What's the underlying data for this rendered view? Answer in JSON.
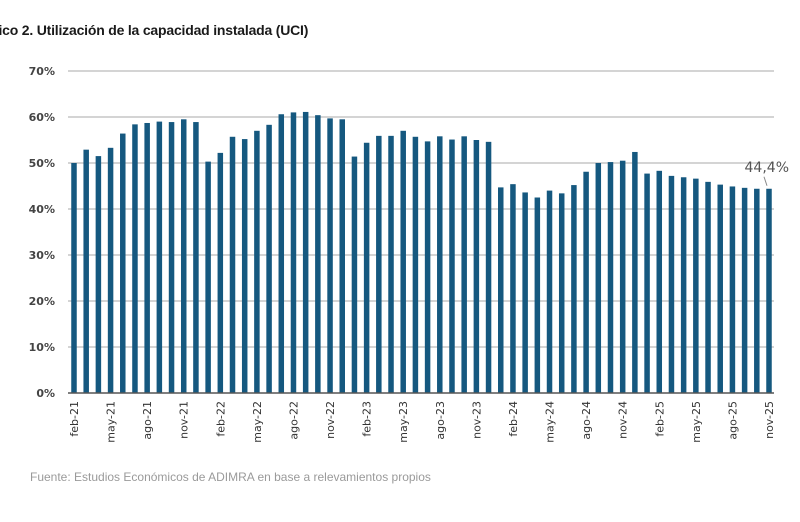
{
  "title": "fico 2. Utilización de la capacidad instalada (UCI)",
  "source": "Fuente: Estudios Económicos de ADIMRA en base a relevamientos propios",
  "colors": {
    "bar": "#15587f",
    "grid": "#d4d4d4",
    "axis": "#555555"
  },
  "chart_data": {
    "type": "bar",
    "title": "Utilización de la capacidad instalada (UCI)",
    "xlabel": "",
    "ylabel": "",
    "ylim": [
      0,
      70
    ],
    "yticks": [
      "0%",
      "10%",
      "20%",
      "30%",
      "40%",
      "50%",
      "60%",
      "70%"
    ],
    "grid": true,
    "categories": [
      "feb-21",
      "mar-21",
      "abr-21",
      "may-21",
      "jun-21",
      "jul-21",
      "ago-21",
      "sep-21",
      "oct-21",
      "nov-21",
      "dic-21",
      "ene-22",
      "feb-22",
      "mar-22",
      "abr-22",
      "may-22",
      "jun-22",
      "jul-22",
      "ago-22",
      "sep-22",
      "oct-22",
      "nov-22",
      "dic-22",
      "ene-23",
      "feb-23",
      "mar-23",
      "abr-23",
      "may-23",
      "jun-23",
      "jul-23",
      "ago-23",
      "sep-23",
      "oct-23",
      "nov-23",
      "dic-23",
      "ene-24",
      "feb-24",
      "mar-24",
      "abr-24",
      "may-24",
      "jun-24",
      "jul-24",
      "ago-24",
      "sep-24",
      "oct-24",
      "nov-24",
      "dic-24",
      "ene-25",
      "feb-25",
      "mar-25",
      "abr-25",
      "may-25",
      "jun-25",
      "jul-25",
      "ago-25",
      "sep-25",
      "oct-25",
      "nov-25"
    ],
    "xtick_labels": [
      "feb-21",
      "may-21",
      "ago-21",
      "nov-21",
      "feb-22",
      "may-22",
      "ago-22",
      "nov-22",
      "feb-23",
      "may-23",
      "ago-23",
      "nov-23",
      "feb-24",
      "may-24",
      "ago-24",
      "nov-24",
      "feb-25",
      "may-25",
      "ago-25",
      "nov-25"
    ],
    "values": [
      50.0,
      52.9,
      51.5,
      53.3,
      56.4,
      58.4,
      58.7,
      59.0,
      58.9,
      59.5,
      58.9,
      50.3,
      52.2,
      55.7,
      55.2,
      57.0,
      58.3,
      60.6,
      61.0,
      61.1,
      60.4,
      59.7,
      59.5,
      51.4,
      54.4,
      55.9,
      55.9,
      57.0,
      55.7,
      54.7,
      55.8,
      55.1,
      55.8,
      55.0,
      54.6,
      44.7,
      45.4,
      43.6,
      42.5,
      44.0,
      43.4,
      45.2,
      48.1,
      50.0,
      50.2,
      50.5,
      52.4,
      47.7,
      48.3,
      47.2,
      46.9,
      46.6,
      45.9,
      45.3,
      44.9,
      44.6,
      44.4,
      44.4
    ],
    "annotations": [
      {
        "category": "nov-25",
        "text": "44,4%"
      }
    ]
  }
}
